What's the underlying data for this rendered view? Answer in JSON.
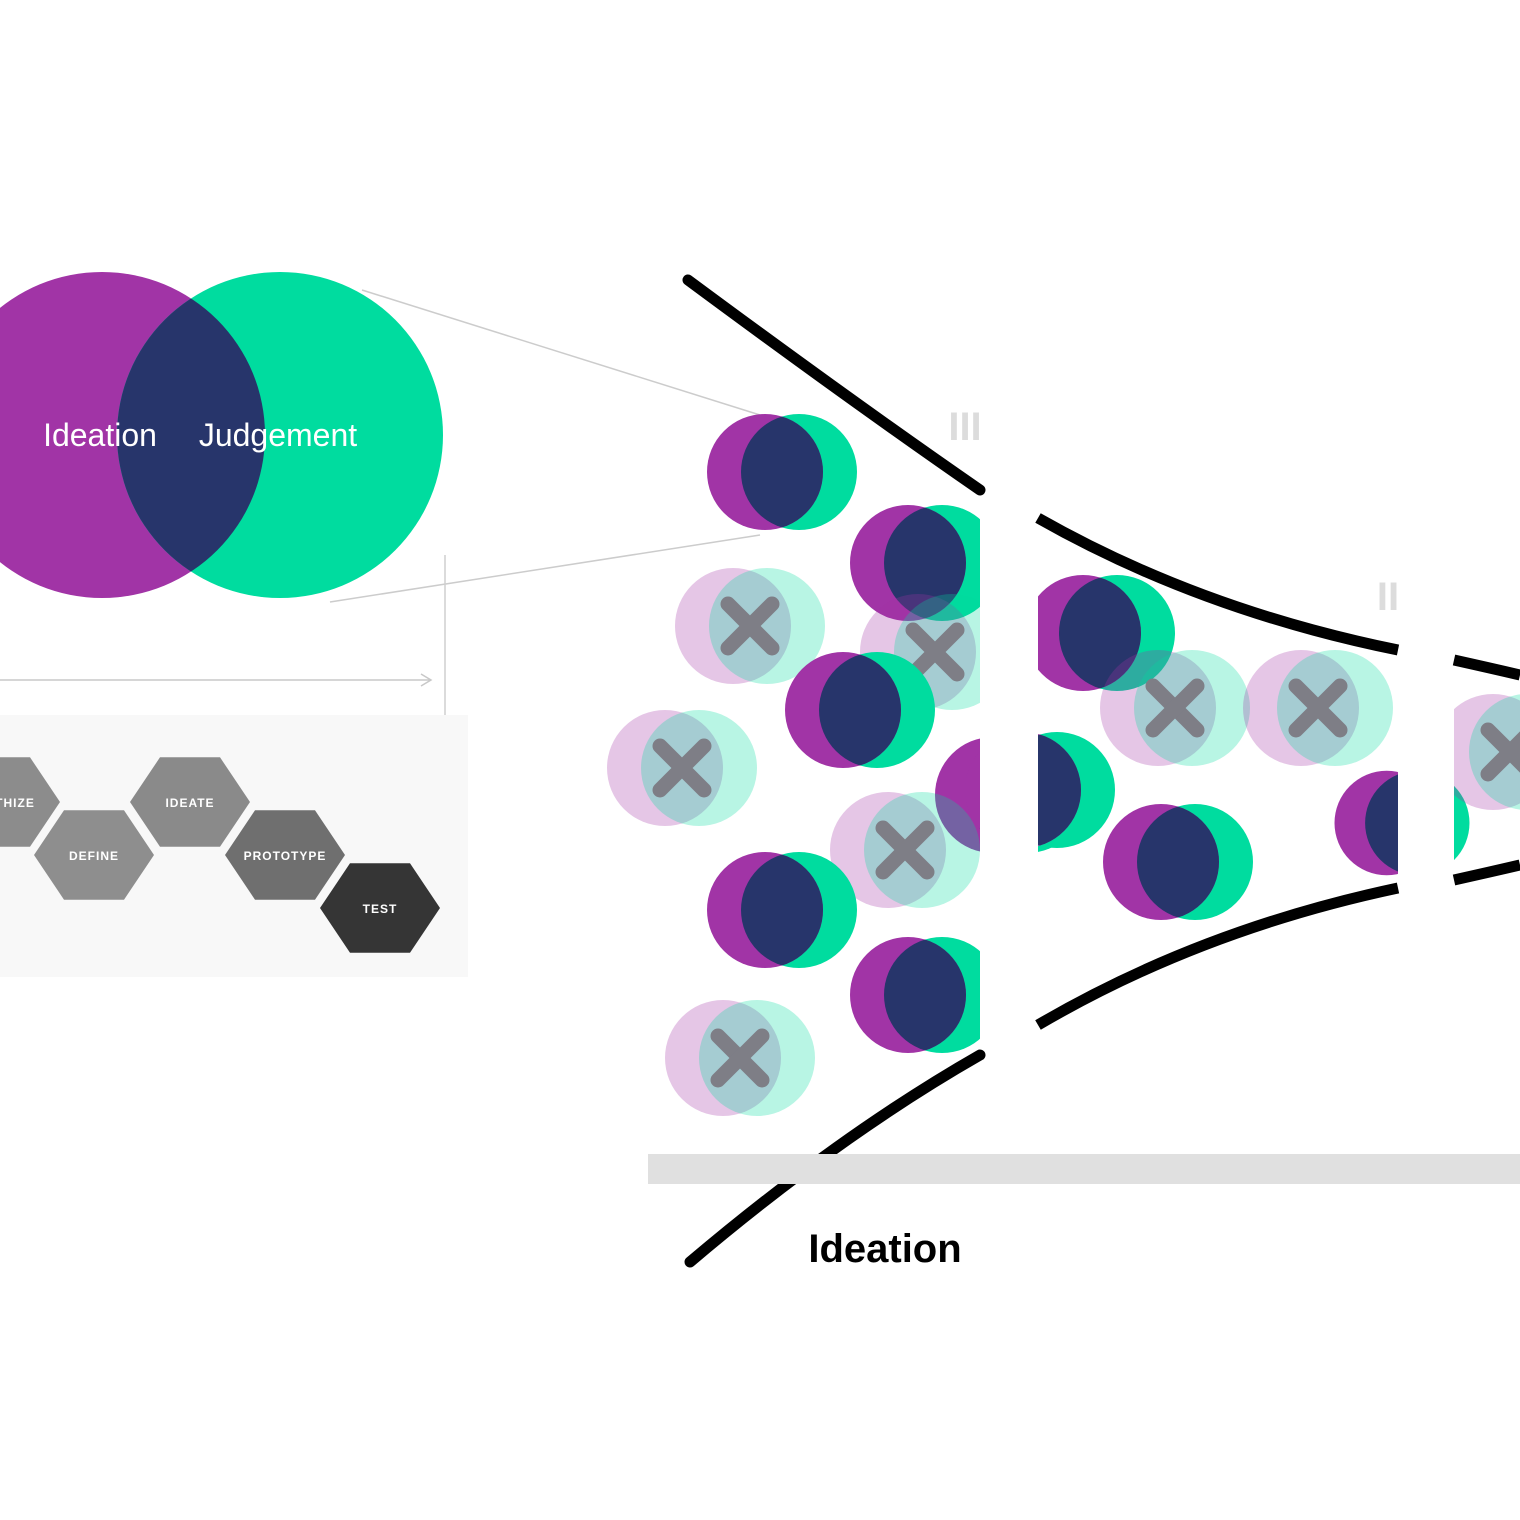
{
  "venn": {
    "left_label": "Ideation",
    "right_label": "Judgement",
    "colors": {
      "ideation": "#a134a6",
      "judgement": "#00dc9f",
      "overlap": "#27356b"
    }
  },
  "process_steps": [
    {
      "label": "EMPATHIZE",
      "shown_text": "THIZE",
      "shade": "#8c8c8c"
    },
    {
      "label": "DEFINE",
      "shown_text": "DEFINE",
      "shade": "#8e8e8e"
    },
    {
      "label": "IDEATE",
      "shown_text": "IDEATE",
      "shade": "#8a8a8a"
    },
    {
      "label": "PROTOTYPE",
      "shown_text": "PROTOTYPE",
      "shade": "#6f6f6f"
    },
    {
      "label": "TEST",
      "shown_text": "TEST",
      "shade": "#353535"
    }
  ],
  "funnel": {
    "stage_markers": [
      "III",
      "II"
    ],
    "axis_label": "Ideation",
    "ideas": [
      {
        "id": 1,
        "rejected": false
      },
      {
        "id": 2,
        "rejected": false
      },
      {
        "id": 3,
        "rejected": true
      },
      {
        "id": 4,
        "rejected": true
      },
      {
        "id": 5,
        "rejected": false
      },
      {
        "id": 6,
        "rejected": true
      },
      {
        "id": 7,
        "rejected": false
      },
      {
        "id": 8,
        "rejected": true
      },
      {
        "id": 9,
        "rejected": false
      },
      {
        "id": 10,
        "rejected": false
      },
      {
        "id": 11,
        "rejected": true
      },
      {
        "id": 12,
        "rejected": false
      },
      {
        "id": 13,
        "rejected": true
      },
      {
        "id": 14,
        "rejected": true
      },
      {
        "id": 15,
        "rejected": false
      },
      {
        "id": 16,
        "rejected": false
      },
      {
        "id": 17,
        "rejected": true
      },
      {
        "id": 18,
        "rejected": false
      }
    ]
  }
}
